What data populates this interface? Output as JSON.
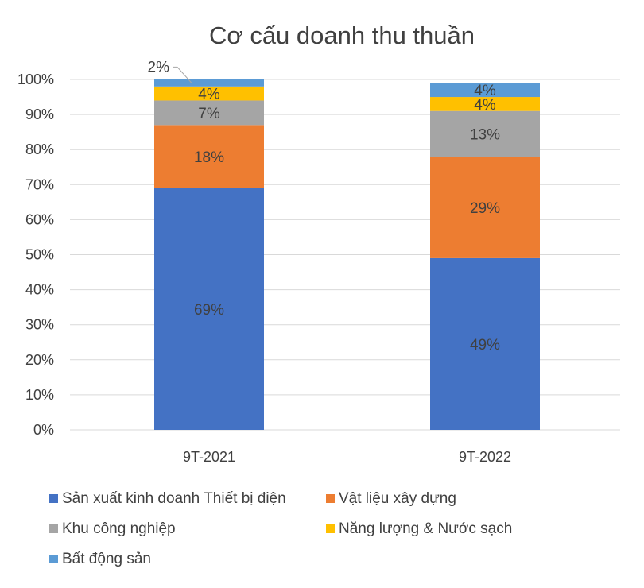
{
  "chart_data": {
    "type": "bar",
    "stacked": true,
    "percent_stacked": true,
    "title": "Cơ cấu doanh thu thuần",
    "xlabel": "",
    "ylabel": "",
    "ylim": [
      0,
      100
    ],
    "yticks": [
      "0%",
      "10%",
      "20%",
      "30%",
      "40%",
      "50%",
      "60%",
      "70%",
      "80%",
      "90%",
      "100%"
    ],
    "categories": [
      "9T-2021",
      "9T-2022"
    ],
    "series": [
      {
        "name": "Sản xuất kinh doanh Thiết bị điện",
        "values": [
          69,
          49
        ],
        "labels": [
          "69%",
          "49%"
        ],
        "color": "#4472c4"
      },
      {
        "name": "Vật liệu xây dựng",
        "values": [
          18,
          29
        ],
        "labels": [
          "18%",
          "29%"
        ],
        "color": "#ed7d31"
      },
      {
        "name": "Khu công nghiệp",
        "values": [
          7,
          13
        ],
        "labels": [
          "7%",
          "13%"
        ],
        "color": "#a5a5a5"
      },
      {
        "name": "Năng lượng & Nước sạch",
        "values": [
          4,
          4
        ],
        "labels": [
          "4%",
          "4%"
        ],
        "color": "#ffc000"
      },
      {
        "name": "Bất động sản",
        "values": [
          2,
          4
        ],
        "labels": [
          "2%",
          "4%"
        ],
        "color": "#5b9bd5"
      }
    ],
    "grid": true,
    "legend_position": "bottom"
  }
}
